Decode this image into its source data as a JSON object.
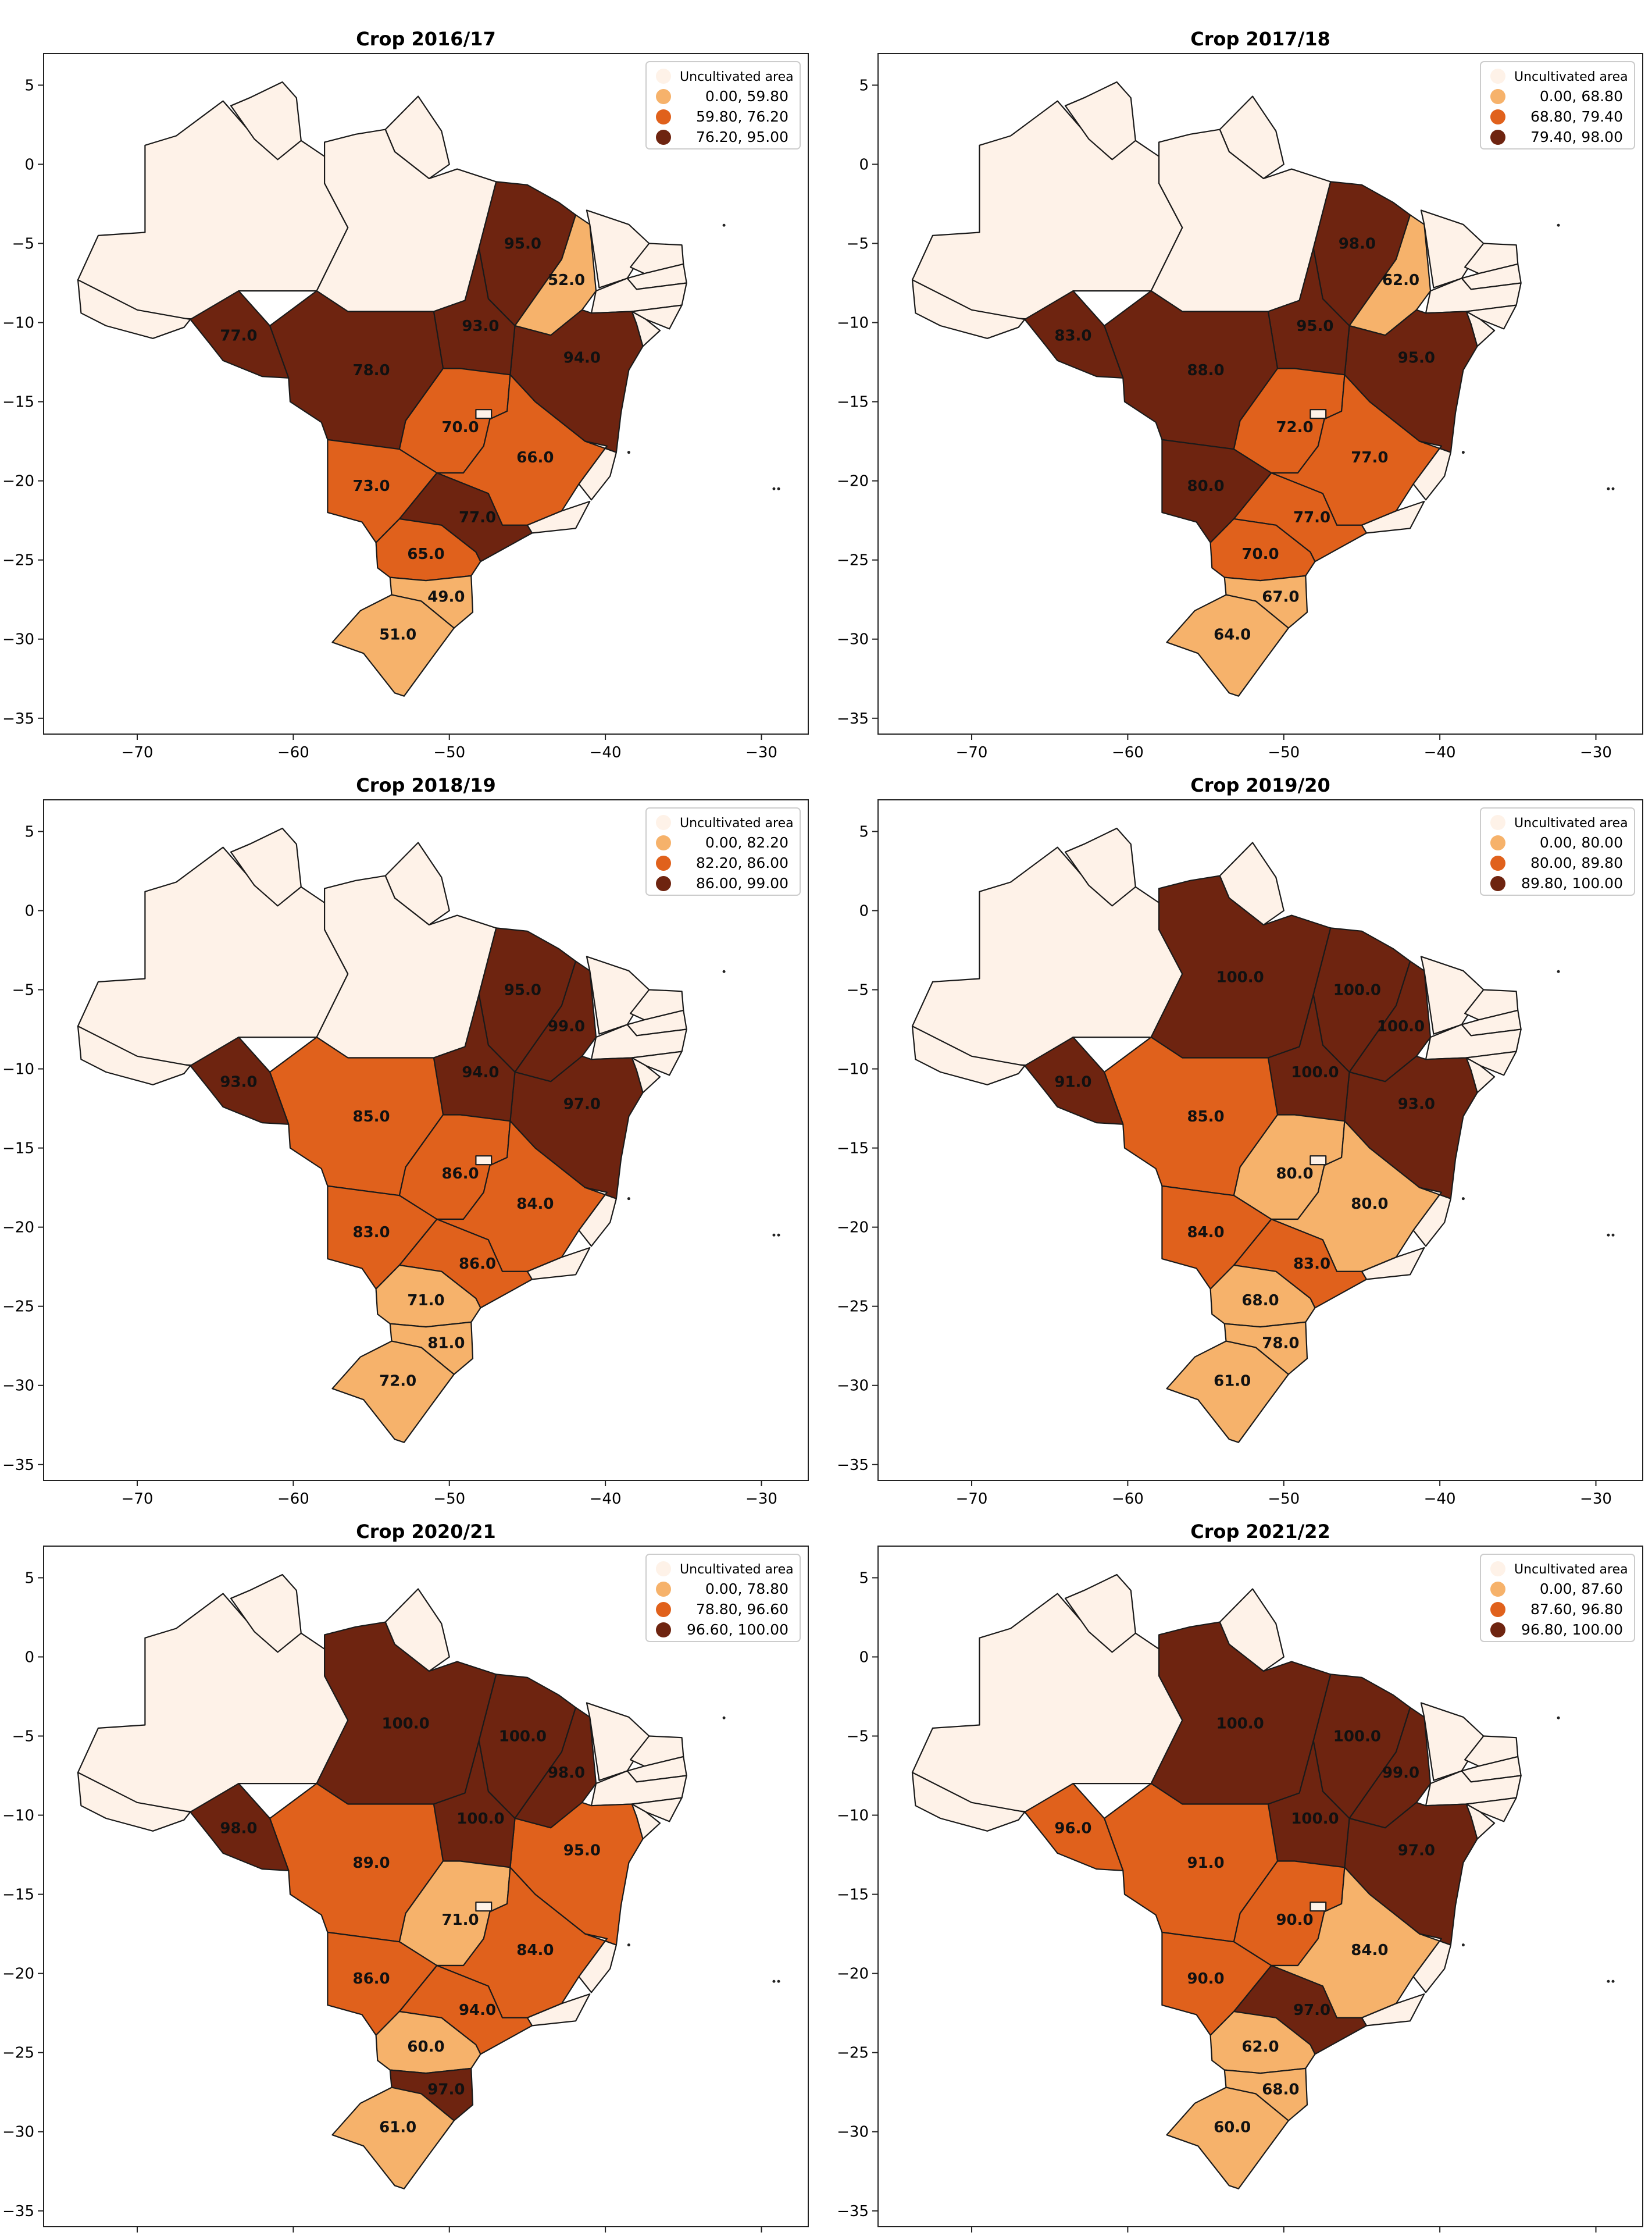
{
  "colors": {
    "uncultivated": "#fef2e8",
    "low": "#f6b26b",
    "mid": "#e0611c",
    "high": "#6e2410",
    "border": "#1a1a1a"
  },
  "x_ticks": [
    "−70",
    "−60",
    "−50",
    "−40",
    "−30"
  ],
  "y_ticks": [
    "5",
    "0",
    "−5",
    "−10",
    "−15",
    "−20",
    "−25",
    "−30",
    "−35"
  ],
  "panels": [
    {
      "title": "Crop 2016/17",
      "legend": [
        "Uncultivated area",
        "0.00, 59.80",
        "59.80, 76.20",
        "76.20, 95.00"
      ],
      "states": {
        "RO": {
          "v": "77.0",
          "c": "high"
        },
        "MT": {
          "v": "78.0",
          "c": "high"
        },
        "TO": {
          "v": "93.0",
          "c": "high"
        },
        "MA": {
          "v": "95.0",
          "c": "high"
        },
        "PI": {
          "v": "52.0",
          "c": "low"
        },
        "BA": {
          "v": "94.0",
          "c": "high"
        },
        "GO": {
          "v": "70.0",
          "c": "mid"
        },
        "MG": {
          "v": "66.0",
          "c": "mid"
        },
        "MS": {
          "v": "73.0",
          "c": "mid"
        },
        "SP": {
          "v": "77.0",
          "c": "high"
        },
        "PR": {
          "v": "65.0",
          "c": "mid"
        },
        "SC": {
          "v": "49.0",
          "c": "low"
        },
        "RS": {
          "v": "51.0",
          "c": "low"
        },
        "PA": {
          "v": "",
          "c": "uncultivated"
        }
      }
    },
    {
      "title": "Crop 2017/18",
      "legend": [
        "Uncultivated area",
        "0.00, 68.80",
        "68.80, 79.40",
        "79.40, 98.00"
      ],
      "states": {
        "RO": {
          "v": "83.0",
          "c": "high"
        },
        "MT": {
          "v": "88.0",
          "c": "high"
        },
        "TO": {
          "v": "95.0",
          "c": "high"
        },
        "MA": {
          "v": "98.0",
          "c": "high"
        },
        "PI": {
          "v": "62.0",
          "c": "low"
        },
        "BA": {
          "v": "95.0",
          "c": "high"
        },
        "GO": {
          "v": "72.0",
          "c": "mid"
        },
        "MG": {
          "v": "77.0",
          "c": "mid"
        },
        "MS": {
          "v": "80.0",
          "c": "high"
        },
        "SP": {
          "v": "77.0",
          "c": "mid"
        },
        "PR": {
          "v": "70.0",
          "c": "mid"
        },
        "SC": {
          "v": "67.0",
          "c": "low"
        },
        "RS": {
          "v": "64.0",
          "c": "low"
        },
        "PA": {
          "v": "",
          "c": "uncultivated"
        }
      }
    },
    {
      "title": "Crop 2018/19",
      "legend": [
        "Uncultivated area",
        "0.00, 82.20",
        "82.20, 86.00",
        "86.00, 99.00"
      ],
      "states": {
        "RO": {
          "v": "93.0",
          "c": "high"
        },
        "MT": {
          "v": "85.0",
          "c": "mid"
        },
        "TO": {
          "v": "94.0",
          "c": "high"
        },
        "MA": {
          "v": "95.0",
          "c": "high"
        },
        "PI": {
          "v": "99.0",
          "c": "high"
        },
        "BA": {
          "v": "97.0",
          "c": "high"
        },
        "GO": {
          "v": "86.0",
          "c": "mid"
        },
        "MG": {
          "v": "84.0",
          "c": "mid"
        },
        "MS": {
          "v": "83.0",
          "c": "mid"
        },
        "SP": {
          "v": "86.0",
          "c": "mid"
        },
        "PR": {
          "v": "71.0",
          "c": "low"
        },
        "SC": {
          "v": "81.0",
          "c": "low"
        },
        "RS": {
          "v": "72.0",
          "c": "low"
        },
        "PA": {
          "v": "",
          "c": "uncultivated"
        }
      }
    },
    {
      "title": "Crop 2019/20",
      "legend": [
        "Uncultivated area",
        "0.00, 80.00",
        "80.00, 89.80",
        "89.80, 100.00"
      ],
      "states": {
        "RO": {
          "v": "91.0",
          "c": "high"
        },
        "MT": {
          "v": "85.0",
          "c": "mid"
        },
        "TO": {
          "v": "100.0",
          "c": "high"
        },
        "MA": {
          "v": "100.0",
          "c": "high"
        },
        "PI": {
          "v": "100.0",
          "c": "high"
        },
        "BA": {
          "v": "93.0",
          "c": "high"
        },
        "GO": {
          "v": "80.0",
          "c": "low"
        },
        "MG": {
          "v": "80.0",
          "c": "low"
        },
        "MS": {
          "v": "84.0",
          "c": "mid"
        },
        "SP": {
          "v": "83.0",
          "c": "mid"
        },
        "PR": {
          "v": "68.0",
          "c": "low"
        },
        "SC": {
          "v": "78.0",
          "c": "low"
        },
        "RS": {
          "v": "61.0",
          "c": "low"
        },
        "PA": {
          "v": "100.0",
          "c": "high"
        }
      }
    },
    {
      "title": "Crop 2020/21",
      "legend": [
        "Uncultivated area",
        "0.00, 78.80",
        "78.80, 96.60",
        "96.60, 100.00"
      ],
      "states": {
        "RO": {
          "v": "98.0",
          "c": "high"
        },
        "MT": {
          "v": "89.0",
          "c": "mid"
        },
        "TO": {
          "v": "100.0",
          "c": "high"
        },
        "MA": {
          "v": "100.0",
          "c": "high"
        },
        "PI": {
          "v": "98.0",
          "c": "high"
        },
        "BA": {
          "v": "95.0",
          "c": "mid"
        },
        "GO": {
          "v": "71.0",
          "c": "low"
        },
        "MG": {
          "v": "84.0",
          "c": "mid"
        },
        "MS": {
          "v": "86.0",
          "c": "mid"
        },
        "SP": {
          "v": "94.0",
          "c": "mid"
        },
        "PR": {
          "v": "60.0",
          "c": "low"
        },
        "SC": {
          "v": "97.0",
          "c": "high"
        },
        "RS": {
          "v": "61.0",
          "c": "low"
        },
        "PA": {
          "v": "100.0",
          "c": "high"
        }
      }
    },
    {
      "title": "Crop 2021/22",
      "legend": [
        "Uncultivated area",
        "0.00, 87.60",
        "87.60, 96.80",
        "96.80, 100.00"
      ],
      "states": {
        "RO": {
          "v": "96.0",
          "c": "mid"
        },
        "MT": {
          "v": "91.0",
          "c": "mid"
        },
        "TO": {
          "v": "100.0",
          "c": "high"
        },
        "MA": {
          "v": "100.0",
          "c": "high"
        },
        "PI": {
          "v": "99.0",
          "c": "high"
        },
        "BA": {
          "v": "97.0",
          "c": "high"
        },
        "GO": {
          "v": "90.0",
          "c": "mid"
        },
        "MG": {
          "v": "84.0",
          "c": "low"
        },
        "MS": {
          "v": "90.0",
          "c": "mid"
        },
        "SP": {
          "v": "97.0",
          "c": "high"
        },
        "PR": {
          "v": "62.0",
          "c": "low"
        },
        "SC": {
          "v": "68.0",
          "c": "low"
        },
        "RS": {
          "v": "60.0",
          "c": "low"
        },
        "PA": {
          "v": "100.0",
          "c": "high"
        }
      }
    }
  ]
}
